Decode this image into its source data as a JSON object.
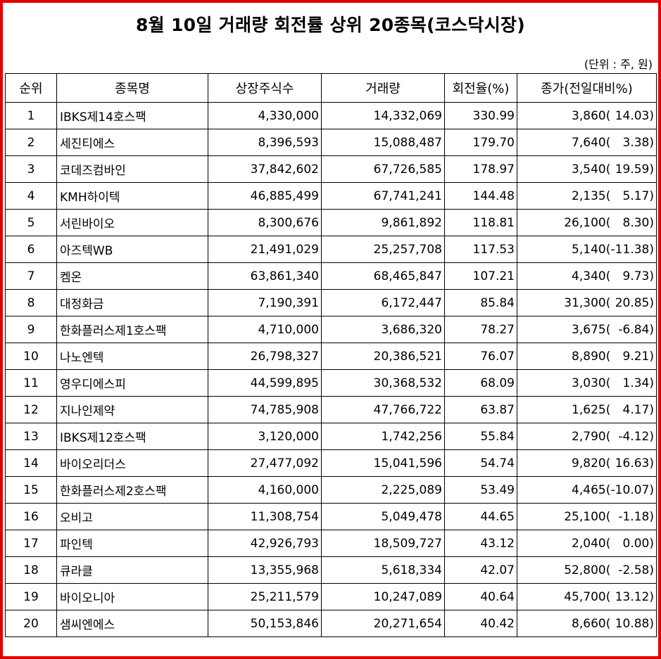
{
  "title": "8월 10일 거래량 회전률 상위 20종목(코스닥시장)",
  "unit": "(단위 : 주, 원)",
  "columns": [
    "순위",
    "종목명",
    "상장주식수",
    "거래량",
    "회전율(%)",
    "종가(전일대비%)"
  ],
  "rows": [
    {
      "rank": "1",
      "name": "IBKS제14호스팩",
      "listed": "4,330,000",
      "volume": "14,332,069",
      "turnover": "330.99",
      "close": "3,860",
      "change": "14.03"
    },
    {
      "rank": "2",
      "name": "세진티에스",
      "listed": "8,396,593",
      "volume": "15,088,487",
      "turnover": "179.70",
      "close": "7,640",
      "change": "3.38"
    },
    {
      "rank": "3",
      "name": "코데즈컴바인",
      "listed": "37,842,602",
      "volume": "67,726,585",
      "turnover": "178.97",
      "close": "3,540",
      "change": "19.59"
    },
    {
      "rank": "4",
      "name": "KMH하이텍",
      "listed": "46,885,499",
      "volume": "67,741,241",
      "turnover": "144.48",
      "close": "2,135",
      "change": "5.17"
    },
    {
      "rank": "5",
      "name": "서린바이오",
      "listed": "8,300,676",
      "volume": "9,861,892",
      "turnover": "118.81",
      "close": "26,100",
      "change": "8.30"
    },
    {
      "rank": "6",
      "name": "아즈텍WB",
      "listed": "21,491,029",
      "volume": "25,257,708",
      "turnover": "117.53",
      "close": "5,140",
      "change": "-11.38"
    },
    {
      "rank": "7",
      "name": "켐온",
      "listed": "63,861,340",
      "volume": "68,465,847",
      "turnover": "107.21",
      "close": "4,340",
      "change": "9.73"
    },
    {
      "rank": "8",
      "name": "대정화금",
      "listed": "7,190,391",
      "volume": "6,172,447",
      "turnover": "85.84",
      "close": "31,300",
      "change": "20.85"
    },
    {
      "rank": "9",
      "name": "한화플러스제1호스팩",
      "listed": "4,710,000",
      "volume": "3,686,320",
      "turnover": "78.27",
      "close": "3,675",
      "change": "-6.84"
    },
    {
      "rank": "10",
      "name": "나노엔텍",
      "listed": "26,798,327",
      "volume": "20,386,521",
      "turnover": "76.07",
      "close": "8,890",
      "change": "9.21"
    },
    {
      "rank": "11",
      "name": "영우디에스피",
      "listed": "44,599,895",
      "volume": "30,368,532",
      "turnover": "68.09",
      "close": "3,030",
      "change": "1.34"
    },
    {
      "rank": "12",
      "name": "지나인제약",
      "listed": "74,785,908",
      "volume": "47,766,722",
      "turnover": "63.87",
      "close": "1,625",
      "change": "4.17"
    },
    {
      "rank": "13",
      "name": "IBKS제12호스팩",
      "listed": "3,120,000",
      "volume": "1,742,256",
      "turnover": "55.84",
      "close": "2,790",
      "change": "-4.12"
    },
    {
      "rank": "14",
      "name": "바이오리더스",
      "listed": "27,477,092",
      "volume": "15,041,596",
      "turnover": "54.74",
      "close": "9,820",
      "change": "16.63"
    },
    {
      "rank": "15",
      "name": "한화플러스제2호스팩",
      "listed": "4,160,000",
      "volume": "2,225,089",
      "turnover": "53.49",
      "close": "4,465",
      "change": "-10.07"
    },
    {
      "rank": "16",
      "name": "오비고",
      "listed": "11,308,754",
      "volume": "5,049,478",
      "turnover": "44.65",
      "close": "25,100",
      "change": "-1.18"
    },
    {
      "rank": "17",
      "name": "파인텍",
      "listed": "42,926,793",
      "volume": "18,509,727",
      "turnover": "43.12",
      "close": "2,040",
      "change": "0.00"
    },
    {
      "rank": "18",
      "name": "큐라클",
      "listed": "13,355,968",
      "volume": "5,618,334",
      "turnover": "42.07",
      "close": "52,800",
      "change": "-2.58"
    },
    {
      "rank": "19",
      "name": "바이오니아",
      "listed": "25,211,579",
      "volume": "10,247,089",
      "turnover": "40.64",
      "close": "45,700",
      "change": "13.12"
    },
    {
      "rank": "20",
      "name": "샘씨엔에스",
      "listed": "50,153,846",
      "volume": "20,271,654",
      "turnover": "40.42",
      "close": "8,660",
      "change": "10.88"
    }
  ],
  "colors": {
    "frame_border": "#e00000",
    "grid": "#000000",
    "text": "#000000"
  }
}
